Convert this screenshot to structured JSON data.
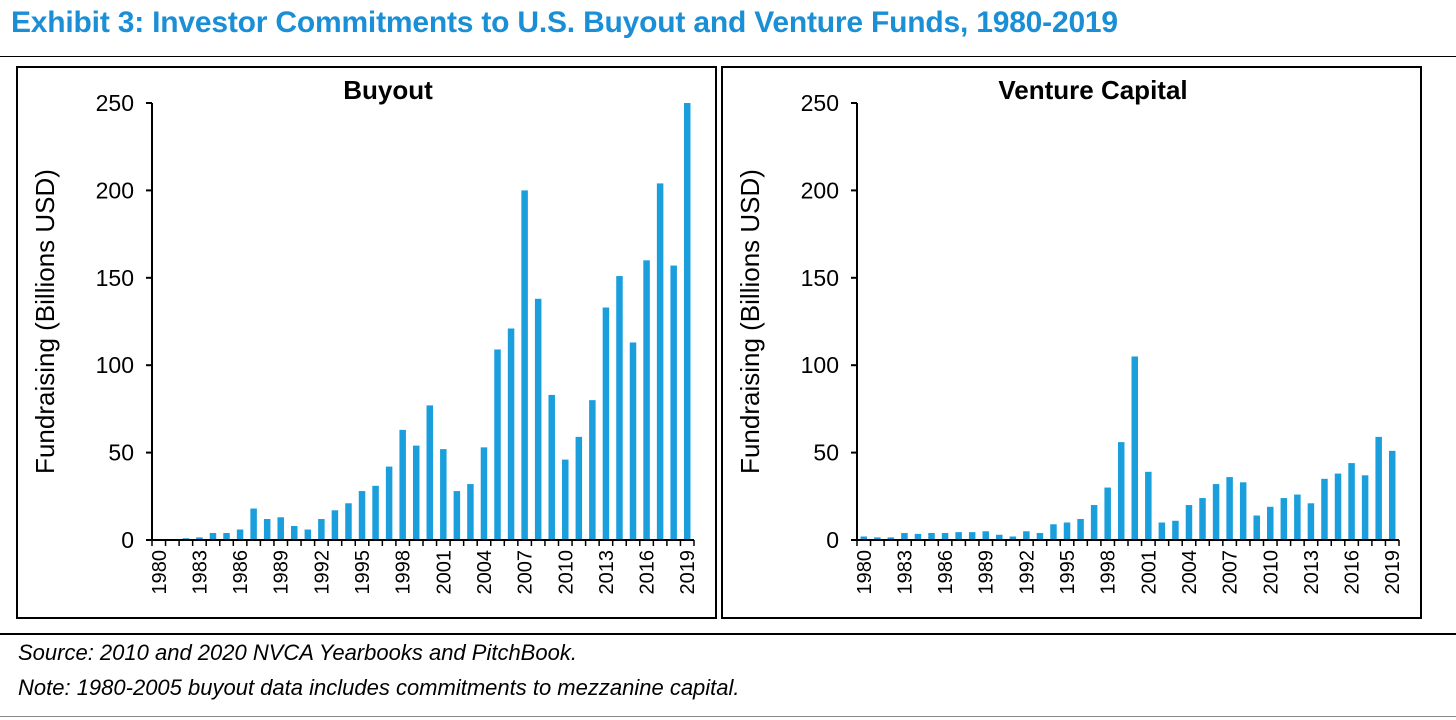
{
  "header": {
    "title": "Exhibit 3: Investor Commitments to U.S. Buyout and Venture Funds, 1980-2019"
  },
  "footer": {
    "source": "Source: 2010 and 2020 NVCA Yearbooks and PitchBook.",
    "note": "Note: 1980-2005 buyout data includes commitments to mezzanine capital."
  },
  "colors": {
    "title": "#1a8fd6",
    "bar": "#1a9fdc"
  },
  "chart_data": [
    {
      "type": "bar",
      "title": "Buyout",
      "ylabel": "Fundraising (Billions USD)",
      "xlabel": "",
      "ylim": [
        0,
        250
      ],
      "yticks": [
        0,
        50,
        100,
        150,
        200,
        250
      ],
      "xtick_labels": [
        "1980",
        "1983",
        "1986",
        "1989",
        "1992",
        "1995",
        "1998",
        "2001",
        "2004",
        "2007",
        "2010",
        "2013",
        "2016",
        "2019"
      ],
      "categories": [
        "1980",
        "1981",
        "1982",
        "1983",
        "1984",
        "1985",
        "1986",
        "1987",
        "1988",
        "1989",
        "1990",
        "1991",
        "1992",
        "1993",
        "1994",
        "1995",
        "1996",
        "1997",
        "1998",
        "1999",
        "2000",
        "2001",
        "2002",
        "2003",
        "2004",
        "2005",
        "2006",
        "2007",
        "2008",
        "2009",
        "2010",
        "2011",
        "2012",
        "2013",
        "2014",
        "2015",
        "2016",
        "2017",
        "2018",
        "2019"
      ],
      "values": [
        0.2,
        0.2,
        1,
        1.5,
        4,
        4,
        6,
        18,
        12,
        13,
        8,
        6,
        12,
        17,
        21,
        28,
        31,
        42,
        63,
        54,
        77,
        52,
        28,
        32,
        53,
        109,
        121,
        200,
        138,
        83,
        46,
        59,
        80,
        133,
        151,
        113,
        160,
        204,
        157,
        250
      ],
      "grid": false
    },
    {
      "type": "bar",
      "title": "Venture Capital",
      "ylabel": "Fundraising (Billions USD)",
      "xlabel": "",
      "ylim": [
        0,
        250
      ],
      "yticks": [
        0,
        50,
        100,
        150,
        200,
        250
      ],
      "xtick_labels": [
        "1980",
        "1983",
        "1986",
        "1989",
        "1992",
        "1995",
        "1998",
        "2001",
        "2004",
        "2007",
        "2010",
        "2013",
        "2016",
        "2019"
      ],
      "categories": [
        "1980",
        "1981",
        "1982",
        "1983",
        "1984",
        "1985",
        "1986",
        "1987",
        "1988",
        "1989",
        "1990",
        "1991",
        "1992",
        "1993",
        "1994",
        "1995",
        "1996",
        "1997",
        "1998",
        "1999",
        "2000",
        "2001",
        "2002",
        "2003",
        "2004",
        "2005",
        "2006",
        "2007",
        "2008",
        "2009",
        "2010",
        "2011",
        "2012",
        "2013",
        "2014",
        "2015",
        "2016",
        "2017",
        "2018",
        "2019"
      ],
      "values": [
        2,
        1.5,
        1.5,
        4,
        3.5,
        4,
        4,
        4.5,
        4.5,
        5,
        3,
        2,
        5,
        4,
        9,
        10,
        12,
        20,
        30,
        56,
        105,
        39,
        10,
        11,
        20,
        24,
        32,
        36,
        33,
        14,
        19,
        24,
        26,
        21,
        35,
        38,
        44,
        37,
        59,
        51
      ],
      "grid": false
    }
  ]
}
